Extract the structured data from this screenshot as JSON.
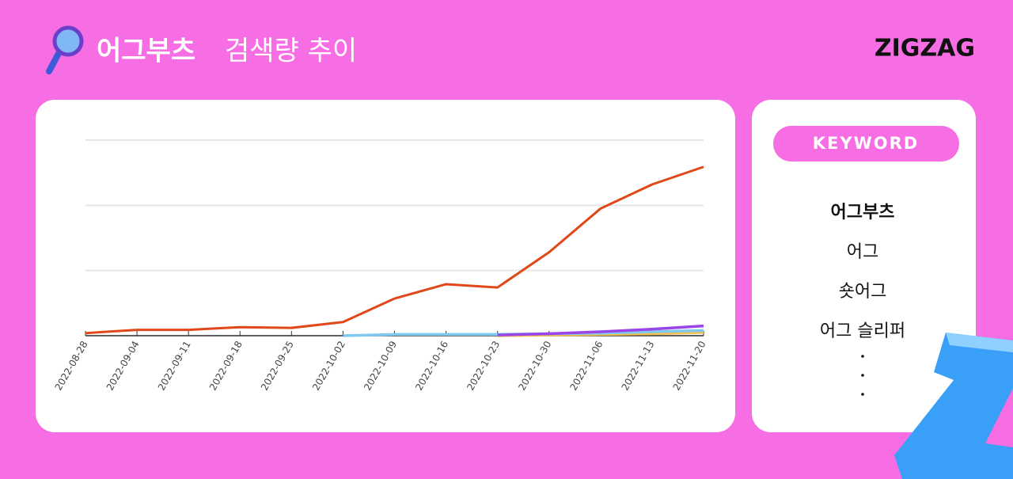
{
  "header": {
    "title_keyword": "어그부츠",
    "title": "검색량 추이",
    "logo": "ZIGZAG"
  },
  "keyword_panel": {
    "badge": "KEYWORD"
  },
  "chart_data": {
    "type": "line",
    "categories": [
      "2022-08-28",
      "2022-09-04",
      "2022-09-11",
      "2022-09-18",
      "2022-09-25",
      "2022-10-02",
      "2022-10-09",
      "2022-10-16",
      "2022-10-23",
      "2022-10-30",
      "2022-11-06",
      "2022-11-13",
      "2022-11-20"
    ],
    "series": [
      {
        "name": "어그부츠",
        "color": "#e0481a",
        "values": [
          0.04,
          0.09,
          0.09,
          0.13,
          0.12,
          0.21,
          0.57,
          0.79,
          0.74,
          1.28,
          1.95,
          2.32,
          2.59
        ]
      },
      {
        "name": "어그",
        "color": "#9a45e8",
        "values": [
          null,
          null,
          null,
          null,
          null,
          null,
          null,
          null,
          0.01,
          0.03,
          0.06,
          0.1,
          0.15
        ]
      },
      {
        "name": "숏어그",
        "color": "#7fc8f0",
        "values": [
          null,
          null,
          null,
          null,
          null,
          0.0,
          0.02,
          0.02,
          0.02,
          0.03,
          0.04,
          0.06,
          0.08
        ]
      },
      {
        "name": "어그 슬리퍼",
        "color": "#f2c14e",
        "values": [
          null,
          null,
          null,
          null,
          null,
          null,
          null,
          null,
          0.0,
          0.01,
          0.02,
          0.03,
          0.05
        ]
      }
    ],
    "ylim": [
      0,
      3
    ],
    "yticks": [
      0,
      1,
      2,
      3
    ],
    "grid": true
  }
}
